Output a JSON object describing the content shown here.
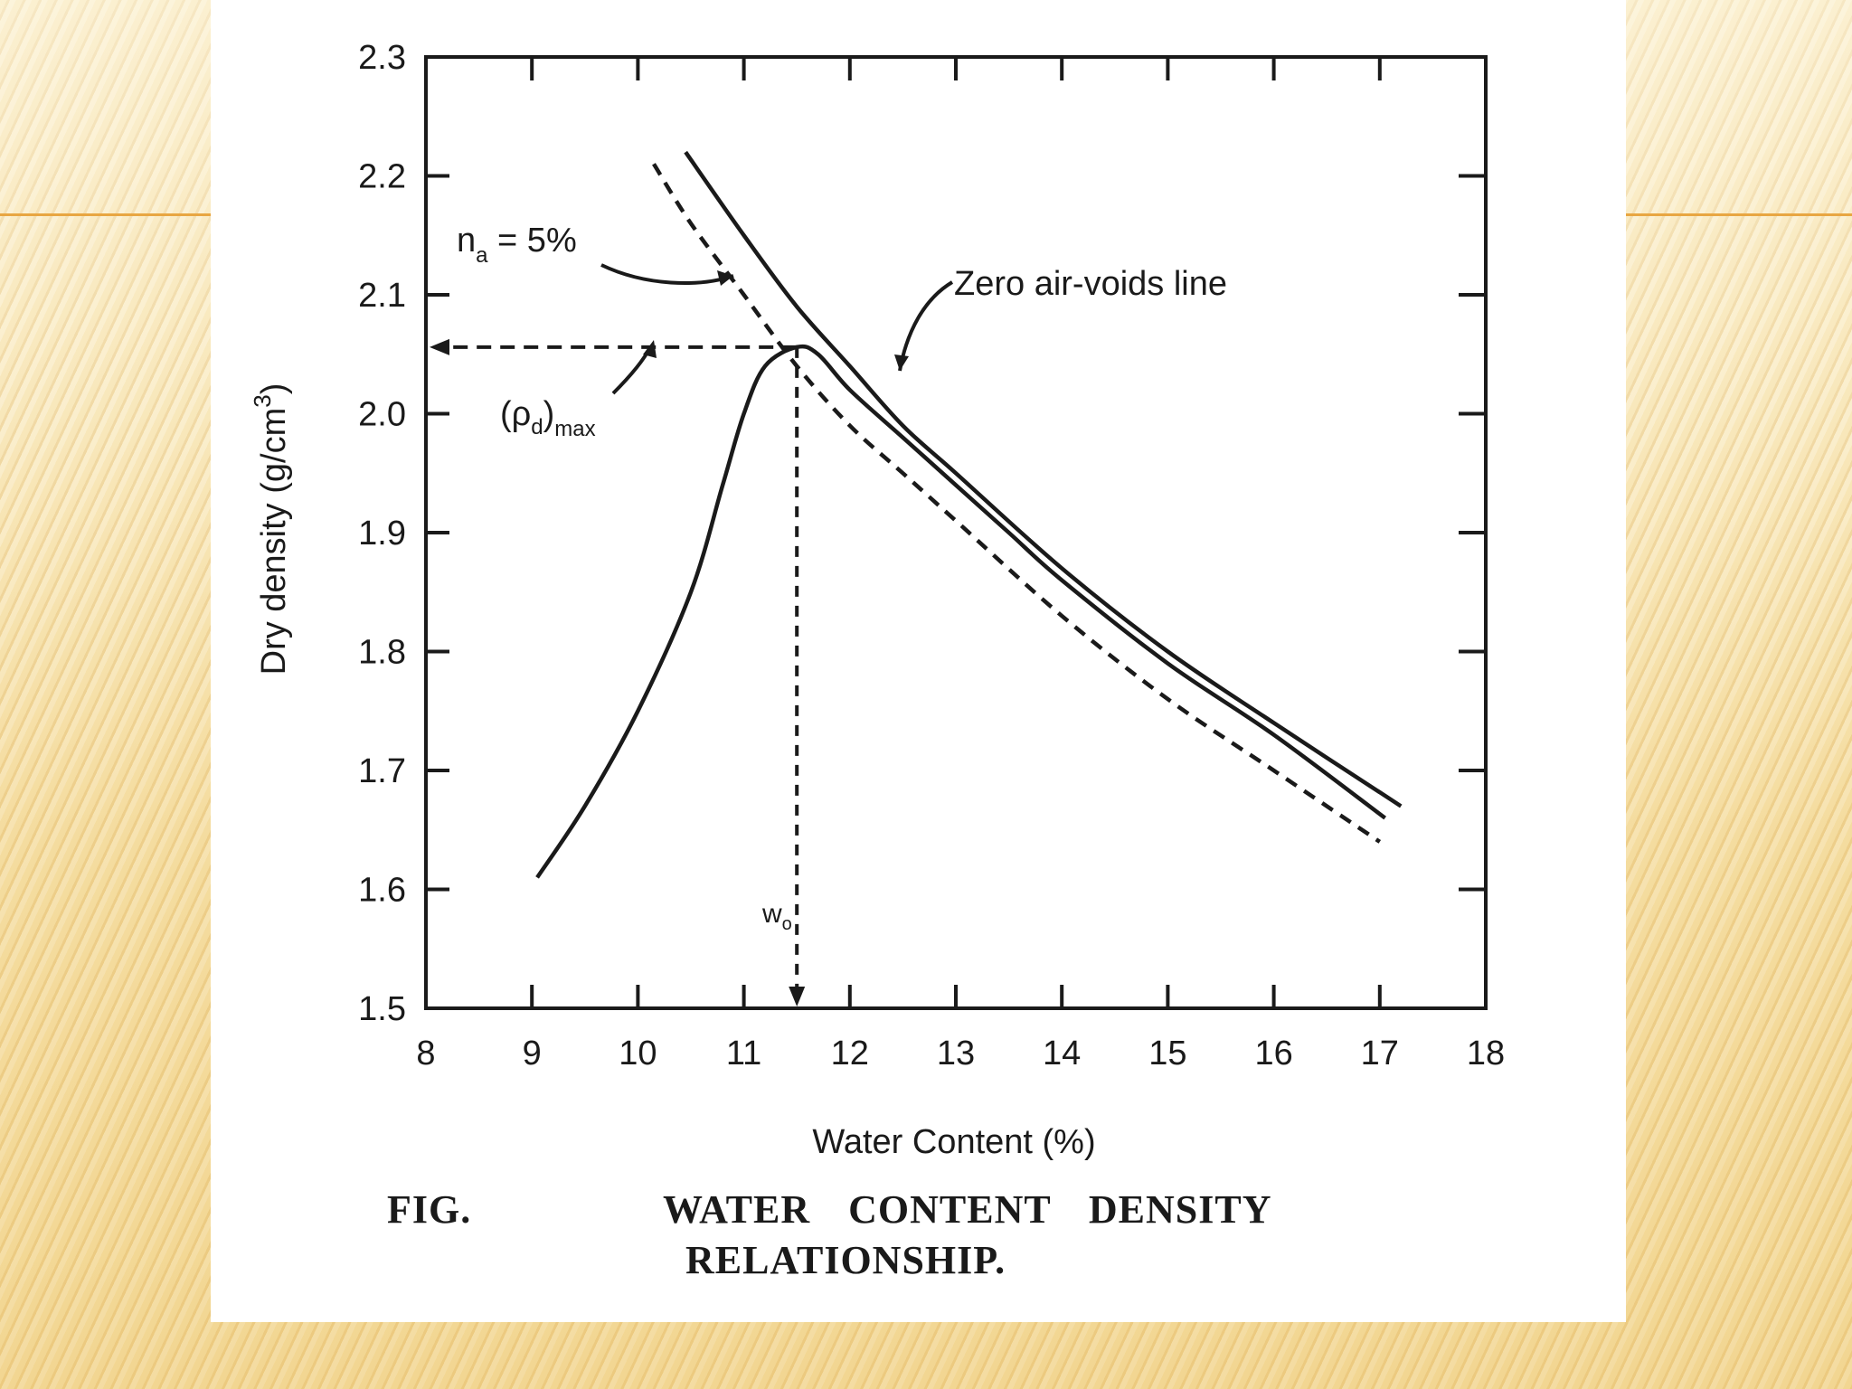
{
  "slide": {
    "background_color": "#f3dca4",
    "accent_color": "#e8a642"
  },
  "figure": {
    "caption_label": "FIG.",
    "caption_line1": "WATER CONTENT DENSITY",
    "caption_line2": "RELATIONSHIP."
  },
  "chart_data": {
    "type": "line",
    "xlabel": "Water Content (%)",
    "ylabel": "Dry density (g/cm",
    "ylabel_superscript": "3",
    "ylabel_close": ")",
    "xlim": [
      8,
      18
    ],
    "ylim": [
      1.5,
      2.3
    ],
    "x_ticks": [
      8,
      9,
      10,
      11,
      12,
      13,
      14,
      15,
      16,
      17,
      18
    ],
    "y_ticks": [
      1.5,
      1.6,
      1.7,
      1.8,
      1.9,
      2.0,
      2.1,
      2.2,
      2.3
    ],
    "x_tick_labels": [
      "8",
      "9",
      "10",
      "11",
      "12",
      "13",
      "14",
      "15",
      "16",
      "17",
      "18"
    ],
    "y_tick_labels": [
      "1.5",
      "1.6",
      "1.7",
      "1.8",
      "1.9",
      "2.0",
      "2.1",
      "2.2",
      "2.3"
    ],
    "grid": false,
    "series": [
      {
        "style": "solid",
        "points": [
          [
            9.05,
            1.61
          ],
          [
            9.5,
            1.67
          ],
          [
            10.0,
            1.75
          ],
          [
            10.5,
            1.85
          ],
          [
            10.8,
            1.94
          ],
          [
            11.0,
            2.0
          ],
          [
            11.2,
            2.04
          ],
          [
            11.5,
            2.056
          ],
          [
            11.7,
            2.05
          ],
          [
            12.0,
            2.02
          ],
          [
            12.5,
            1.98
          ],
          [
            13.0,
            1.94
          ],
          [
            13.5,
            1.9
          ],
          [
            14.0,
            1.86
          ],
          [
            15.0,
            1.79
          ],
          [
            16.0,
            1.73
          ],
          [
            17.05,
            1.66
          ]
        ]
      },
      {
        "name": "Zero air-voids line",
        "style": "solid",
        "points": [
          [
            10.45,
            2.22
          ],
          [
            11.0,
            2.15
          ],
          [
            11.5,
            2.09
          ],
          [
            12.0,
            2.04
          ],
          [
            12.5,
            1.99
          ],
          [
            13.0,
            1.95
          ],
          [
            14.0,
            1.87
          ],
          [
            15.0,
            1.8
          ],
          [
            16.0,
            1.74
          ],
          [
            17.2,
            1.67
          ]
        ]
      },
      {
        "name": "n",
        "name_subscript": "a",
        "name_suffix": " = 5%",
        "style": "dashed",
        "points": [
          [
            10.15,
            2.21
          ],
          [
            10.5,
            2.16
          ],
          [
            11.0,
            2.1
          ],
          [
            11.5,
            2.04
          ],
          [
            12.0,
            1.99
          ],
          [
            12.5,
            1.95
          ],
          [
            13.0,
            1.91
          ],
          [
            14.0,
            1.83
          ],
          [
            15.0,
            1.76
          ],
          [
            16.0,
            1.7
          ],
          [
            17.0,
            1.64
          ]
        ]
      }
    ],
    "annotations": {
      "max_density_label": "(ρ",
      "max_density_subscript_d": "d",
      "max_density_close": ")",
      "max_density_subscript_max": "max",
      "optimum_label": "w",
      "optimum_subscript": "o",
      "max_density_value": 2.056,
      "optimum_water_content": 11.5
    }
  }
}
